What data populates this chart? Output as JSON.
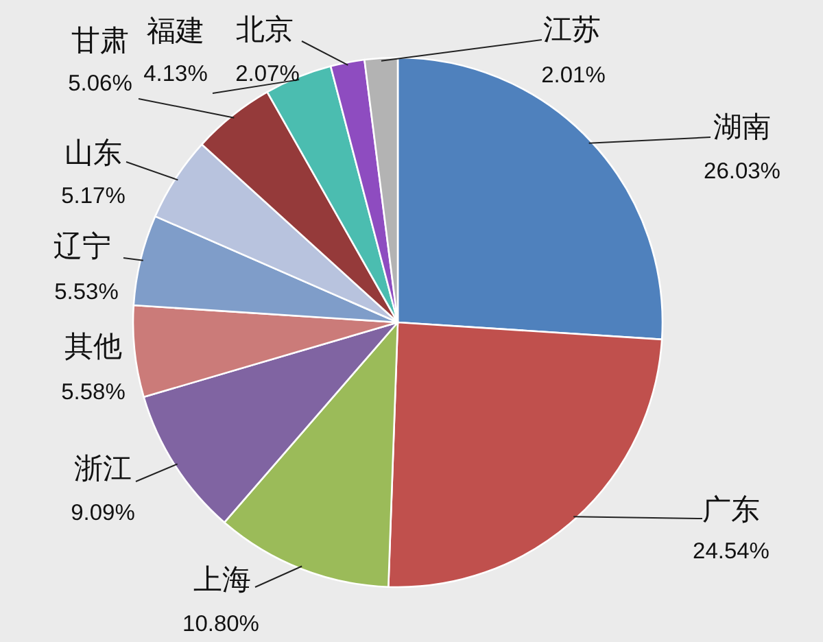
{
  "chart_data": {
    "type": "pie",
    "categories": [
      "湖南",
      "广东",
      "上海",
      "浙江",
      "其他",
      "辽宁",
      "山东",
      "甘肃",
      "福建",
      "北京",
      "江苏"
    ],
    "values": [
      26.03,
      24.54,
      10.8,
      9.09,
      5.58,
      5.53,
      5.17,
      5.06,
      4.13,
      2.07,
      2.01
    ],
    "value_labels": [
      "26.03%",
      "24.54%",
      "10.80%",
      "9.09%",
      "5.58%",
      "5.53%",
      "5.17%",
      "5.06%",
      "4.13%",
      "2.07%",
      "2.01%"
    ],
    "colors": [
      "#4f81bd",
      "#c0504d",
      "#9bbb59",
      "#8064a2",
      "#cb7b79",
      "#7f9dc9",
      "#b8c3de",
      "#953a3a",
      "#4bbdb0",
      "#8e4cc0",
      "#b3b3b3"
    ],
    "legend": false
  }
}
